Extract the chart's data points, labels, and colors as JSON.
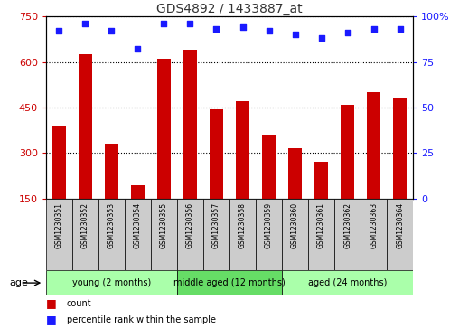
{
  "title": "GDS4892 / 1433887_at",
  "samples": [
    "GSM1230351",
    "GSM1230352",
    "GSM1230353",
    "GSM1230354",
    "GSM1230355",
    "GSM1230356",
    "GSM1230357",
    "GSM1230358",
    "GSM1230359",
    "GSM1230360",
    "GSM1230361",
    "GSM1230362",
    "GSM1230363",
    "GSM1230364"
  ],
  "counts": [
    390,
    625,
    330,
    195,
    610,
    640,
    445,
    470,
    360,
    315,
    270,
    460,
    500,
    480
  ],
  "percentiles": [
    92,
    96,
    92,
    82,
    96,
    96,
    93,
    94,
    92,
    90,
    88,
    91,
    93,
    93
  ],
  "bar_color": "#cc0000",
  "dot_color": "#1a1aff",
  "ylim_left": [
    150,
    750
  ],
  "ylim_right": [
    0,
    100
  ],
  "yticks_left": [
    150,
    300,
    450,
    600,
    750
  ],
  "yticks_right": [
    0,
    25,
    50,
    75,
    100
  ],
  "groups": [
    {
      "label": "young (2 months)",
      "start": 0,
      "end": 5,
      "color": "#aaffaa"
    },
    {
      "label": "middle aged (12 months)",
      "start": 5,
      "end": 9,
      "color": "#66dd66"
    },
    {
      "label": "aged (24 months)",
      "start": 9,
      "end": 14,
      "color": "#aaffaa"
    }
  ],
  "age_label": "age",
  "legend_count_label": "count",
  "legend_percentile_label": "percentile rank within the sample",
  "left_tick_color": "#cc0000",
  "right_tick_color": "#1a1aff",
  "title_color": "#333333",
  "background_color": "#ffffff",
  "plot_bg_color": "#ffffff",
  "grid_color": "#000000",
  "tick_label_bg_color": "#cccccc"
}
